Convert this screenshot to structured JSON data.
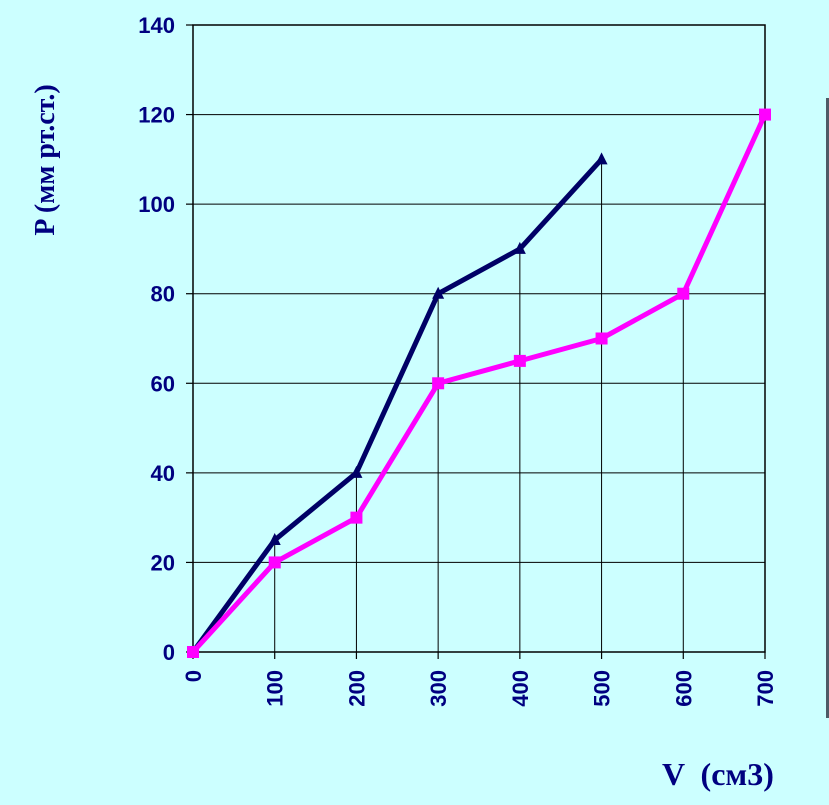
{
  "chart_data": {
    "type": "line",
    "title": "",
    "ylabel": "P (мм рт.ст.)",
    "xlabel": "V  (см3)",
    "ylim": [
      0,
      140
    ],
    "yticks": [
      "0",
      "20",
      "40",
      "60",
      "80",
      "100",
      "120",
      "140"
    ],
    "categories": [
      "0",
      "100",
      "200",
      "300",
      "400",
      "500",
      "600",
      "700"
    ],
    "grid": true,
    "legend": "none",
    "series": [
      {
        "color": "#000066",
        "marker": "triangle",
        "values": [
          0,
          25,
          40,
          80,
          90,
          110,
          null,
          null
        ]
      },
      {
        "color": "#ff00ff",
        "marker": "square",
        "values": [
          0,
          20,
          30,
          60,
          65,
          70,
          80,
          120
        ]
      }
    ]
  }
}
